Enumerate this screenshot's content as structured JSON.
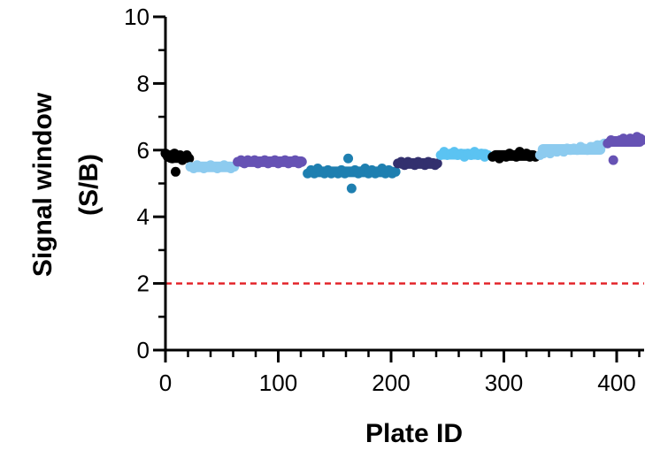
{
  "chart_data": {
    "type": "scatter",
    "xlabel": "Plate ID",
    "ylabel_line1": "Signal window",
    "ylabel_line2": "(S/B)",
    "xlim": [
      0,
      425
    ],
    "ylim": [
      0,
      10
    ],
    "x_ticks": [
      0,
      100,
      200,
      300,
      400
    ],
    "y_ticks": [
      0,
      2,
      4,
      6,
      8,
      10
    ],
    "threshold": {
      "y": 2,
      "color": "#e3262b",
      "style": "dashed"
    },
    "series": [
      {
        "color": "#000000",
        "x_range": [
          0,
          22
        ],
        "points": [
          [
            0,
            5.9
          ],
          [
            2,
            5.8
          ],
          [
            4,
            5.85
          ],
          [
            6,
            5.75
          ],
          [
            8,
            5.9
          ],
          [
            9,
            5.35
          ],
          [
            11,
            5.8
          ],
          [
            13,
            5.85
          ],
          [
            15,
            5.7
          ],
          [
            17,
            5.8
          ],
          [
            19,
            5.85
          ],
          [
            21,
            5.75
          ]
        ]
      },
      {
        "color": "#8dcbef",
        "x_range": [
          22,
          63
        ],
        "points": [
          [
            22,
            5.5
          ],
          [
            25,
            5.45
          ],
          [
            28,
            5.55
          ],
          [
            31,
            5.5
          ],
          [
            34,
            5.45
          ],
          [
            37,
            5.5
          ],
          [
            40,
            5.55
          ],
          [
            43,
            5.5
          ],
          [
            46,
            5.45
          ],
          [
            49,
            5.5
          ],
          [
            52,
            5.55
          ],
          [
            55,
            5.5
          ],
          [
            58,
            5.45
          ],
          [
            61,
            5.5
          ]
        ]
      },
      {
        "color": "#6652b4",
        "x_range": [
          63,
          125
        ],
        "points": [
          [
            64,
            5.65
          ],
          [
            67,
            5.7
          ],
          [
            70,
            5.6
          ],
          [
            73,
            5.7
          ],
          [
            76,
            5.65
          ],
          [
            79,
            5.7
          ],
          [
            82,
            5.6
          ],
          [
            85,
            5.65
          ],
          [
            88,
            5.7
          ],
          [
            91,
            5.6
          ],
          [
            94,
            5.65
          ],
          [
            97,
            5.7
          ],
          [
            100,
            5.6
          ],
          [
            103,
            5.65
          ],
          [
            106,
            5.7
          ],
          [
            109,
            5.6
          ],
          [
            112,
            5.65
          ],
          [
            115,
            5.7
          ],
          [
            118,
            5.6
          ],
          [
            121,
            5.65
          ]
        ]
      },
      {
        "color": "#1e7fb0",
        "x_range": [
          125,
          205
        ],
        "points": [
          [
            126,
            5.3
          ],
          [
            129,
            5.4
          ],
          [
            132,
            5.3
          ],
          [
            135,
            5.45
          ],
          [
            138,
            5.35
          ],
          [
            141,
            5.3
          ],
          [
            144,
            5.4
          ],
          [
            147,
            5.3
          ],
          [
            150,
            5.35
          ],
          [
            153,
            5.3
          ],
          [
            156,
            5.4
          ],
          [
            159,
            5.3
          ],
          [
            162,
            5.75
          ],
          [
            165,
            4.85
          ],
          [
            168,
            5.4
          ],
          [
            171,
            5.3
          ],
          [
            174,
            5.35
          ],
          [
            177,
            5.45
          ],
          [
            180,
            5.3
          ],
          [
            183,
            5.4
          ],
          [
            186,
            5.3
          ],
          [
            189,
            5.35
          ],
          [
            192,
            5.45
          ],
          [
            195,
            5.3
          ],
          [
            198,
            5.4
          ],
          [
            201,
            5.3
          ],
          [
            204,
            5.35
          ]
        ]
      },
      {
        "color": "#33306e",
        "x_range": [
          205,
          242
        ],
        "points": [
          [
            206,
            5.6
          ],
          [
            209,
            5.65
          ],
          [
            212,
            5.55
          ],
          [
            215,
            5.65
          ],
          [
            218,
            5.6
          ],
          [
            221,
            5.55
          ],
          [
            224,
            5.65
          ],
          [
            227,
            5.6
          ],
          [
            230,
            5.55
          ],
          [
            233,
            5.65
          ],
          [
            236,
            5.6
          ],
          [
            239,
            5.55
          ],
          [
            241,
            5.6
          ]
        ]
      },
      {
        "color": "#5bc3f2",
        "x_range": [
          242,
          288
        ],
        "points": [
          [
            244,
            5.85
          ],
          [
            247,
            5.95
          ],
          [
            250,
            5.85
          ],
          [
            253,
            5.9
          ],
          [
            256,
            5.95
          ],
          [
            259,
            5.85
          ],
          [
            262,
            5.9
          ],
          [
            265,
            5.8
          ],
          [
            268,
            5.9
          ],
          [
            271,
            5.85
          ],
          [
            274,
            5.95
          ],
          [
            277,
            5.85
          ],
          [
            280,
            5.9
          ],
          [
            283,
            5.8
          ],
          [
            286,
            5.85
          ]
        ]
      },
      {
        "color": "#000000",
        "x_range": [
          288,
          330
        ],
        "points": [
          [
            290,
            5.8
          ],
          [
            293,
            5.85
          ],
          [
            296,
            5.75
          ],
          [
            299,
            5.85
          ],
          [
            302,
            5.8
          ],
          [
            305,
            5.9
          ],
          [
            308,
            5.85
          ],
          [
            311,
            5.8
          ],
          [
            314,
            5.95
          ],
          [
            317,
            5.85
          ],
          [
            320,
            5.9
          ],
          [
            323,
            5.8
          ],
          [
            326,
            5.85
          ],
          [
            328,
            5.8
          ]
        ]
      },
      {
        "color": "#8dcbef",
        "x_range": [
          330,
          390
        ],
        "points": [
          [
            332,
            5.85
          ],
          [
            335,
            5.9
          ],
          [
            338,
            5.95
          ],
          [
            341,
            5.9
          ],
          [
            344,
            6.0
          ],
          [
            347,
            5.95
          ],
          [
            350,
            6.0
          ],
          [
            353,
            5.95
          ],
          [
            356,
            6.05
          ],
          [
            359,
            6.0
          ],
          [
            362,
            6.05
          ],
          [
            365,
            6.0
          ],
          [
            368,
            6.1
          ],
          [
            371,
            6.05
          ],
          [
            374,
            6.0
          ],
          [
            377,
            6.1
          ],
          [
            380,
            6.1
          ],
          [
            383,
            6.15
          ],
          [
            386,
            6.15
          ],
          [
            389,
            6.2
          ]
        ]
      },
      {
        "color": "#6652b4",
        "x_range": [
          390,
          425
        ],
        "points": [
          [
            392,
            6.2
          ],
          [
            395,
            6.3
          ],
          [
            397,
            5.7
          ],
          [
            400,
            6.25
          ],
          [
            403,
            6.3
          ],
          [
            406,
            6.35
          ],
          [
            409,
            6.3
          ],
          [
            412,
            6.35
          ],
          [
            415,
            6.3
          ],
          [
            418,
            6.4
          ],
          [
            421,
            6.35
          ],
          [
            423,
            6.3
          ]
        ]
      }
    ]
  }
}
